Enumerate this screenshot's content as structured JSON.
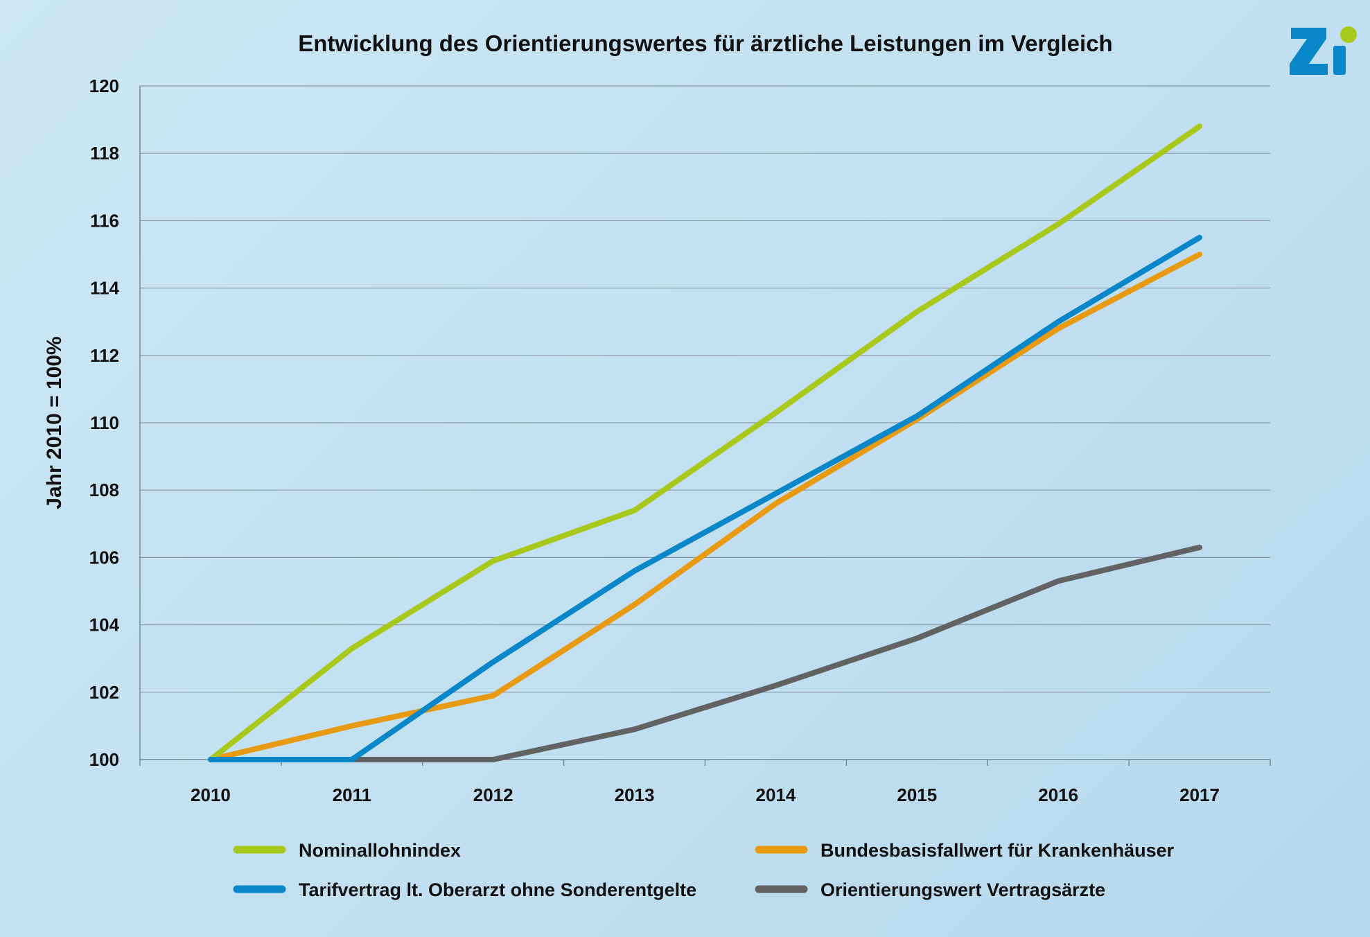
{
  "chart_data": {
    "type": "line",
    "title": "Entwicklung des Orientierungswertes für ärztliche Leistungen im Vergleich",
    "xlabel": "",
    "ylabel": "Jahr 2010 = 100%",
    "categories": [
      "2010",
      "2011",
      "2012",
      "2013",
      "2014",
      "2015",
      "2016",
      "2017"
    ],
    "ylim": [
      100,
      120
    ],
    "yticks": [
      "100",
      "102",
      "104",
      "106",
      "108",
      "110",
      "112",
      "114",
      "116",
      "118",
      "120"
    ],
    "grid": true,
    "legend_position": "bottom",
    "series": [
      {
        "name": "Nominallohnindex",
        "color": "#a8c81c",
        "values": [
          100,
          103.3,
          105.9,
          107.4,
          110.3,
          113.3,
          115.9,
          118.8
        ]
      },
      {
        "name": "Bundesbasisfallwert für Krankenhäuser",
        "color": "#e89a12",
        "values": [
          100,
          101.0,
          101.9,
          104.6,
          107.6,
          110.1,
          112.8,
          115.0
        ]
      },
      {
        "name": "Tarifvertrag lt. Oberarzt ohne Sonderentgelte",
        "color": "#0a87c8",
        "values": [
          100,
          100,
          102.9,
          105.6,
          107.9,
          110.2,
          113.0,
          115.5
        ]
      },
      {
        "name": "Orientierungswert Vertragsärzte",
        "color": "#606263",
        "values": [
          100,
          100,
          100,
          100.9,
          102.2,
          103.6,
          105.3,
          106.3
        ]
      }
    ]
  },
  "logo": {
    "text": "Zi",
    "letter_color": "#0a87c8",
    "dot_color": "#a8c81c",
    "icon": "zi-logo"
  }
}
